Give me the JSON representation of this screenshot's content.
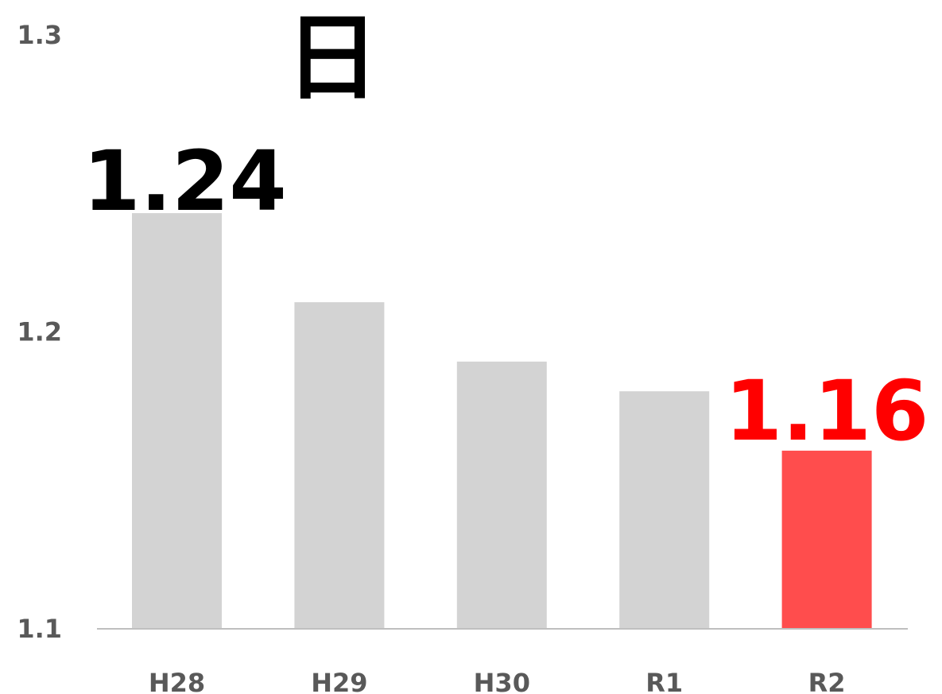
{
  "chart_data": {
    "type": "bar",
    "title": "",
    "unit_label": "日",
    "xlabel": "",
    "ylabel": "",
    "categories": [
      "H28",
      "H29",
      "H30",
      "R1",
      "R2"
    ],
    "series": [
      {
        "values": [
          1.24,
          1.21,
          1.19,
          1.18,
          1.16
        ]
      }
    ],
    "data_labels": [
      {
        "category": "H28",
        "text": "1.24",
        "color": "#000000"
      },
      {
        "category": "R2",
        "text": "1.16",
        "color": "#ff0000"
      }
    ],
    "bar_colors": [
      "#d3d3d3",
      "#d3d3d3",
      "#d3d3d3",
      "#d3d3d3",
      "#ff4d4d"
    ],
    "ylim": [
      1.1,
      1.3
    ],
    "yticks": [
      "1.1",
      "1.2",
      "1.3"
    ],
    "grid": false,
    "legend": "none",
    "axis_color": "#bfbfbf",
    "tick_color": "#595959"
  }
}
